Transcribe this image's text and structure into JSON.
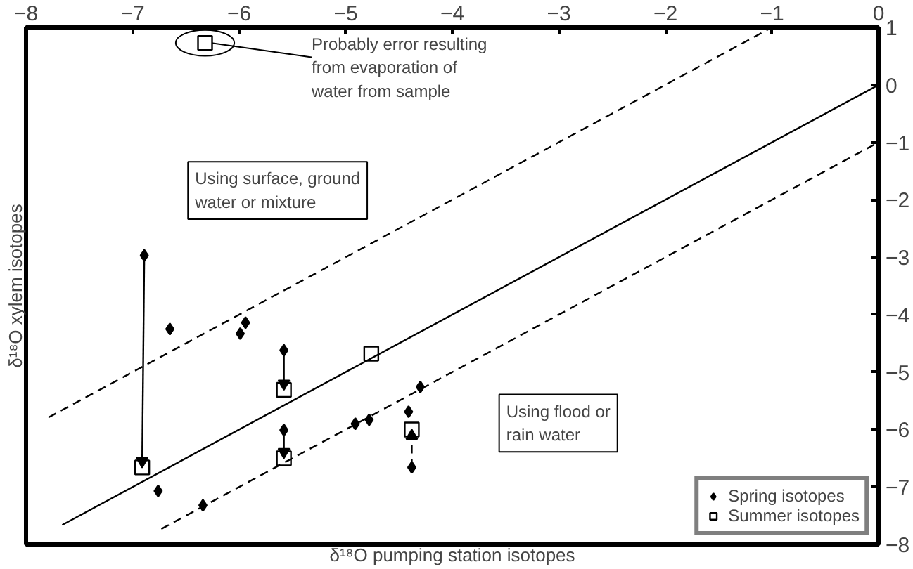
{
  "chart_data": {
    "type": "scatter",
    "xlabel": "δ¹⁸O pumping station isotopes",
    "ylabel": "δ¹⁸O xylem isotopes",
    "xlim": [
      -8,
      0
    ],
    "ylim": [
      -8,
      1
    ],
    "xticks": [
      -8,
      -7,
      -6,
      -5,
      -4,
      -3,
      -2,
      -1,
      0
    ],
    "yticks": [
      -8,
      -7,
      -6,
      -5,
      -4,
      -3,
      -2,
      -1,
      0,
      1
    ],
    "legend": "bottom right",
    "grid": false,
    "series": [
      {
        "name": "Spring isotopes",
        "type": "scatter",
        "marker": "diamond",
        "color": "#000000",
        "x": [
          -6.89,
          -6.65,
          -5.94,
          -5.99,
          -5.58,
          -5.58,
          -4.91,
          -4.78,
          -4.3,
          -4.41,
          -4.38,
          -6.76,
          -6.34
        ],
        "values": [
          -2.97,
          -4.25,
          -4.14,
          -4.33,
          -4.62,
          -6.01,
          -5.9,
          -5.83,
          -5.26,
          -5.69,
          -6.66,
          -7.07,
          -7.32
        ]
      },
      {
        "name": "Summer isotopes",
        "type": "scatter",
        "marker": "square",
        "color": "#000000",
        "x": [
          -6.91,
          -5.58,
          -5.58,
          -4.76,
          -4.38,
          -6.32
        ],
        "values": [
          -6.66,
          -5.31,
          -6.5,
          -4.68,
          -6.0,
          0.73
        ]
      },
      {
        "type": "line",
        "line_style": "solid",
        "marker": "none",
        "color": "#000000",
        "x": [
          -7.66,
          0
        ],
        "values": [
          -7.66,
          0
        ]
      },
      {
        "type": "line",
        "line_style": "dashed",
        "marker": "none",
        "color": "#000000",
        "x": [
          -7.79,
          -1
        ],
        "values": [
          -5.79,
          1
        ]
      },
      {
        "type": "line",
        "line_style": "dashed",
        "marker": "none",
        "color": "#000000",
        "x": [
          -6.73,
          0
        ],
        "values": [
          -7.73,
          -1
        ]
      },
      {
        "type": "line",
        "line_style": "solid",
        "marker": "triangle",
        "color": "#000000",
        "x": [
          -6.89,
          -6.91
        ],
        "values": [
          -2.97,
          -6.55
        ]
      },
      {
        "type": "line",
        "line_style": "solid",
        "marker": "triangle",
        "color": "#000000",
        "x": [
          -5.58,
          -5.58
        ],
        "values": [
          -4.62,
          -5.2
        ]
      },
      {
        "type": "line",
        "line_style": "solid",
        "marker": "triangle",
        "color": "#000000",
        "x": [
          -5.58,
          -5.58
        ],
        "values": [
          -6.01,
          -6.39
        ]
      },
      {
        "type": "line",
        "line_style": "dashed",
        "marker": "triangle",
        "color": "#000000",
        "x": [
          -4.38,
          -4.38
        ],
        "values": [
          -6.66,
          -6.11
        ]
      }
    ],
    "annotations": [
      {
        "text": "Probably error resulting\nfrom evaporation of\nwater from sample",
        "x": -6.32,
        "y": 0.73
      },
      "Using surface, ground\nwater or mixture",
      "Using flood or\nrain water"
    ]
  }
}
